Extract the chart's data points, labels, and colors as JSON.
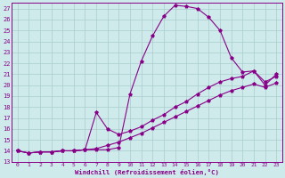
{
  "xlabel": "Windchill (Refroidissement éolien,°C)",
  "xlim": [
    -0.5,
    23.5
  ],
  "ylim": [
    13,
    27.5
  ],
  "yticks": [
    13,
    14,
    15,
    16,
    17,
    18,
    19,
    20,
    21,
    22,
    23,
    24,
    25,
    26,
    27
  ],
  "xticks": [
    0,
    1,
    2,
    3,
    4,
    5,
    6,
    7,
    8,
    9,
    10,
    11,
    12,
    13,
    14,
    15,
    16,
    17,
    18,
    19,
    20,
    21,
    22,
    23
  ],
  "bg_color": "#ceeaea",
  "line_color": "#880088",
  "grid_color": "#aacccc",
  "curve1_x": [
    0,
    1,
    2,
    3,
    4,
    5,
    6,
    7,
    8,
    9,
    10,
    11,
    12,
    13,
    14,
    15,
    16,
    17,
    18,
    19,
    20,
    21,
    22,
    23
  ],
  "curve1_y": [
    14.0,
    13.8,
    13.9,
    13.9,
    14.0,
    14.0,
    14.1,
    14.1,
    14.1,
    14.3,
    19.2,
    22.2,
    24.5,
    26.3,
    27.3,
    27.2,
    27.0,
    26.2,
    25.0,
    22.5,
    21.2,
    21.3,
    20.0,
    21.0
  ],
  "curve2_x": [
    0,
    1,
    2,
    3,
    4,
    5,
    6,
    7,
    8,
    9,
    10,
    11,
    12,
    13,
    14,
    15,
    16,
    17,
    18,
    19,
    20,
    21,
    22,
    23
  ],
  "curve2_y": [
    14.0,
    13.8,
    13.9,
    13.9,
    14.0,
    14.0,
    14.1,
    17.5,
    16.0,
    15.5,
    15.8,
    16.2,
    16.8,
    17.3,
    18.0,
    18.5,
    19.2,
    19.8,
    20.3,
    20.6,
    20.8,
    21.3,
    20.3,
    20.8
  ],
  "curve3_x": [
    0,
    1,
    2,
    3,
    4,
    5,
    6,
    7,
    8,
    9,
    10,
    11,
    12,
    13,
    14,
    15,
    16,
    17,
    18,
    19,
    20,
    21,
    22,
    23
  ],
  "curve3_y": [
    14.0,
    13.8,
    13.9,
    13.9,
    14.0,
    14.0,
    14.1,
    14.2,
    14.5,
    14.8,
    15.2,
    15.6,
    16.1,
    16.6,
    17.1,
    17.6,
    18.1,
    18.6,
    19.1,
    19.5,
    19.8,
    20.1,
    19.8,
    20.2
  ]
}
